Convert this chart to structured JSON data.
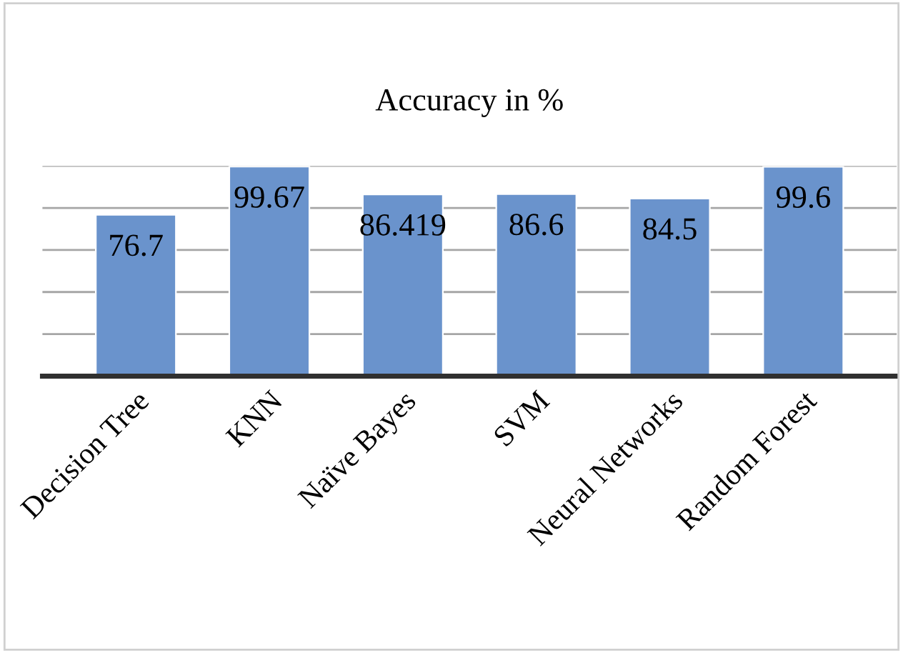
{
  "chart_data": {
    "type": "bar",
    "title": "Accuracy in %",
    "categories": [
      "Decision Tree",
      "KNN",
      "Naïve Bayes",
      "SVM",
      "Neural Networks",
      "Random Forest"
    ],
    "values": [
      76.7,
      99.67,
      86.419,
      86.6,
      84.5,
      99.6
    ],
    "color": "#6a93cc",
    "ylim": [
      0,
      100
    ],
    "yticks": [
      {
        "value": 0,
        "label": null
      },
      {
        "value": 20,
        "label": null
      },
      {
        "value": 40,
        "label": null
      },
      {
        "value": 60,
        "label": null
      },
      {
        "value": 80,
        "label": null
      },
      {
        "value": 100,
        "label": null
      }
    ],
    "grid": "y",
    "data_labels": true,
    "legend": false
  }
}
